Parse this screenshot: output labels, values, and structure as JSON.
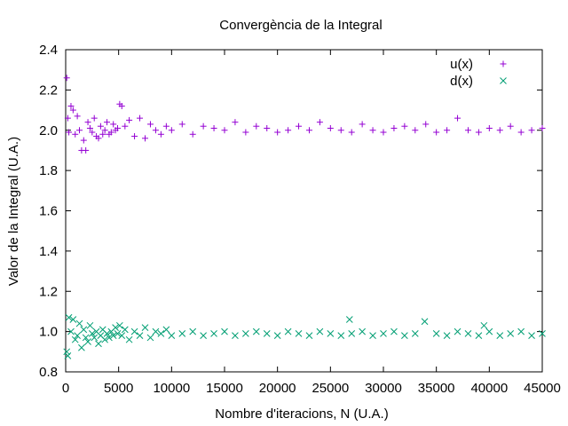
{
  "chart_data": {
    "type": "scatter",
    "title": "Convergència de la Integral",
    "xlabel": "Nombre d'iteracions, N (U.A.)",
    "ylabel": "Valor de la Integral (U.A.)",
    "xlim": [
      0,
      45000
    ],
    "ylim": [
      0.8,
      2.4
    ],
    "x_ticks": [
      0,
      5000,
      10000,
      15000,
      20000,
      25000,
      30000,
      35000,
      40000,
      45000
    ],
    "y_ticks": [
      0.8,
      1.0,
      1.2,
      1.4,
      1.6,
      1.8,
      2.0,
      2.2,
      2.4
    ],
    "x_tick_labels": [
      "0",
      "5000",
      "10000",
      "15000",
      "20000",
      "25000",
      "30000",
      "35000",
      "40000",
      "45000"
    ],
    "y_tick_labels": [
      "0.8",
      "1.0",
      "1.2",
      "1.4",
      "1.6",
      "1.8",
      "2.0",
      "2.2",
      "2.4"
    ],
    "grid": false,
    "legend_position": "top-right",
    "series": [
      {
        "name": "u(x)",
        "marker": "plus",
        "color": "#9400d3",
        "x": [
          100,
          200,
          300,
          500,
          700,
          900,
          1100,
          1300,
          1500,
          1700,
          1900,
          2100,
          2300,
          2500,
          2700,
          2900,
          3100,
          3300,
          3500,
          3700,
          3900,
          4100,
          4300,
          4500,
          4700,
          4900,
          5100,
          5300,
          5600,
          6000,
          6500,
          7000,
          7500,
          8000,
          8500,
          9000,
          9500,
          10000,
          11000,
          12000,
          13000,
          14000,
          15000,
          16000,
          17000,
          18000,
          19000,
          20000,
          21000,
          22000,
          23000,
          24000,
          25000,
          26000,
          27000,
          28000,
          29000,
          30000,
          31000,
          32000,
          33000,
          34000,
          35000,
          36000,
          37000,
          38000,
          39000,
          40000,
          41000,
          42000,
          43000,
          44000,
          45000
        ],
        "y": [
          2.26,
          2.06,
          1.99,
          2.12,
          2.1,
          1.98,
          2.07,
          2.0,
          1.9,
          1.95,
          1.9,
          2.04,
          2.01,
          1.99,
          2.06,
          1.97,
          1.96,
          2.02,
          1.98,
          2.0,
          2.04,
          1.98,
          1.99,
          2.03,
          2.0,
          2.01,
          2.13,
          2.12,
          2.02,
          2.05,
          1.97,
          2.06,
          1.96,
          2.03,
          2.0,
          1.98,
          2.02,
          2.0,
          2.03,
          1.98,
          2.02,
          2.01,
          2.0,
          2.04,
          1.99,
          2.02,
          2.01,
          1.99,
          2.0,
          2.02,
          2.0,
          2.04,
          2.01,
          2.0,
          1.99,
          2.03,
          2.0,
          1.99,
          2.01,
          2.02,
          2.0,
          2.03,
          1.99,
          2.0,
          2.06,
          2.0,
          1.99,
          2.01,
          2.0,
          2.02,
          1.99,
          2.0,
          2.01
        ]
      },
      {
        "name": "d(x)",
        "marker": "cross",
        "color": "#009e73",
        "x": [
          100,
          200,
          300,
          500,
          700,
          900,
          1100,
          1300,
          1500,
          1700,
          1900,
          2100,
          2300,
          2500,
          2700,
          2900,
          3100,
          3300,
          3500,
          3700,
          3900,
          4100,
          4300,
          4500,
          4700,
          4900,
          5100,
          5300,
          5600,
          6000,
          6500,
          7000,
          7500,
          8000,
          8500,
          9000,
          9500,
          10000,
          11000,
          12000,
          13000,
          14000,
          15000,
          16000,
          17000,
          18000,
          19000,
          20000,
          21000,
          22000,
          23000,
          24000,
          25000,
          26000,
          26800,
          27000,
          28000,
          29000,
          30000,
          31000,
          32000,
          33000,
          33900,
          35000,
          36000,
          37000,
          38000,
          39000,
          39500,
          40000,
          41000,
          42000,
          43000,
          44000,
          45000
        ],
        "y": [
          0.9,
          0.88,
          1.07,
          1.0,
          1.06,
          0.96,
          0.98,
          1.04,
          0.92,
          1.01,
          0.97,
          0.95,
          1.03,
          0.99,
          0.97,
          1.0,
          0.94,
          0.98,
          1.01,
          0.96,
          0.99,
          0.97,
          1.0,
          0.98,
          1.02,
          0.99,
          1.03,
          0.98,
          1.01,
          0.96,
          1.0,
          0.98,
          1.02,
          0.97,
          1.0,
          0.99,
          1.01,
          0.98,
          0.99,
          1.0,
          0.98,
          0.99,
          1.0,
          0.98,
          0.99,
          1.0,
          0.99,
          0.98,
          1.0,
          0.99,
          0.98,
          1.0,
          0.99,
          0.98,
          1.06,
          0.99,
          1.0,
          0.98,
          0.99,
          1.0,
          0.98,
          0.99,
          1.05,
          0.99,
          0.98,
          1.0,
          0.99,
          0.98,
          1.03,
          1.0,
          0.98,
          0.99,
          1.0,
          0.98,
          0.99
        ]
      }
    ]
  }
}
